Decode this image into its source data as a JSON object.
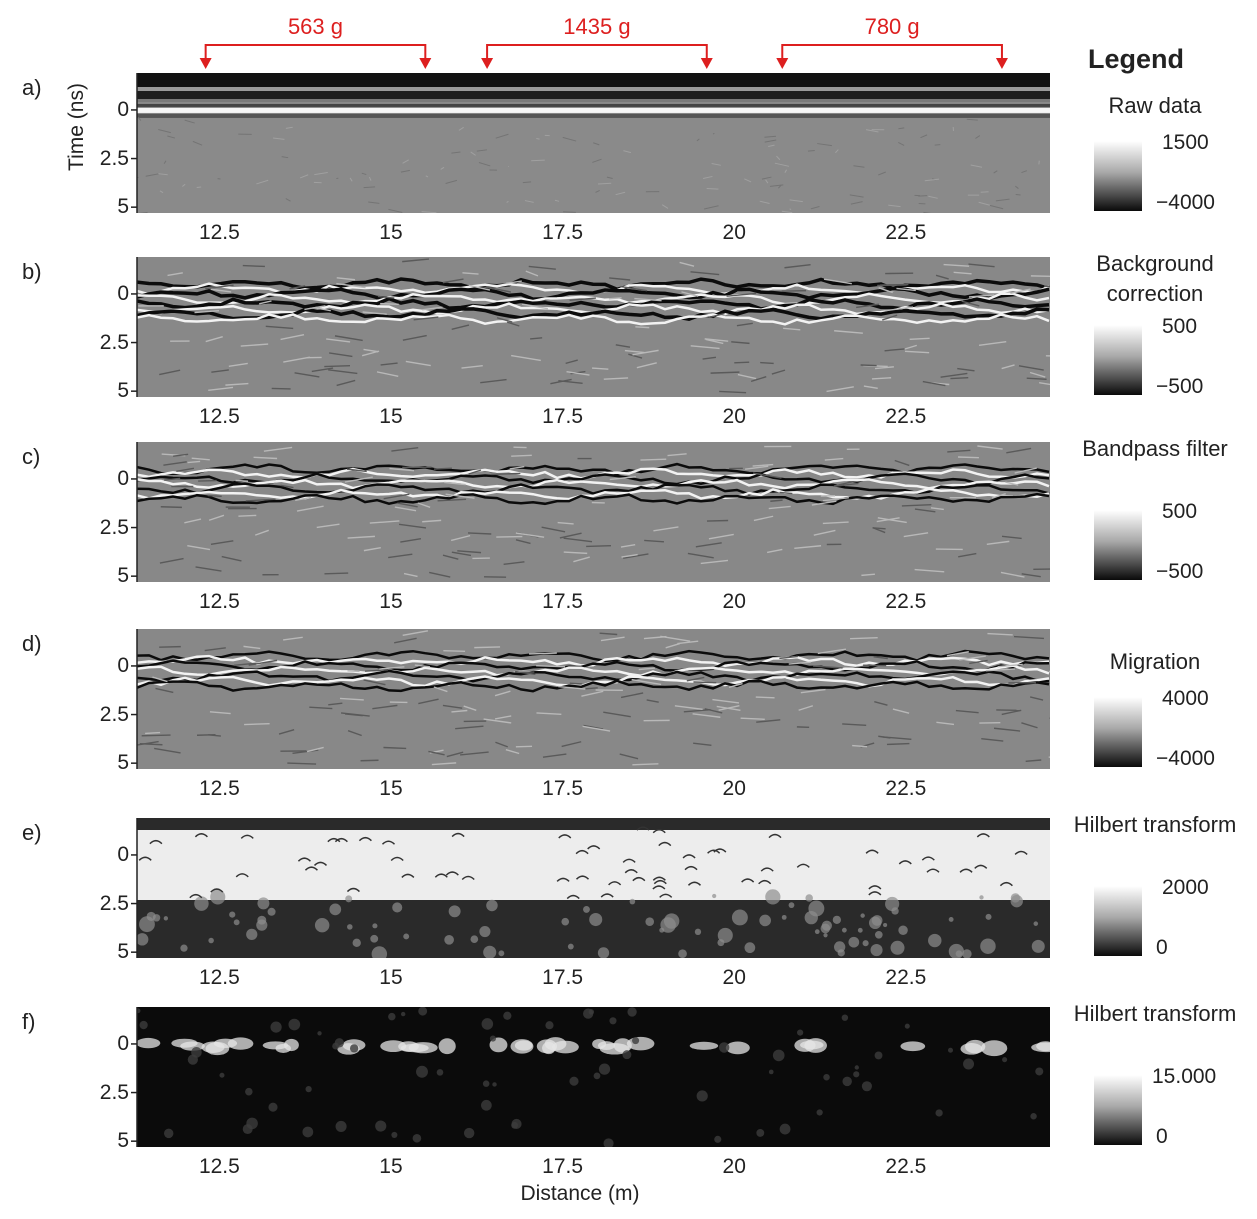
{
  "chart_data": {
    "type": "heatmap",
    "x_unit_label": "Distance (m)",
    "y_unit_label": "Time (ns)",
    "xlim": [
      11.3,
      24.6
    ],
    "ylim": [
      -1.9,
      5.3
    ],
    "x_ticks": [
      {
        "value": 12.5,
        "label": "12.5"
      },
      {
        "value": 15,
        "label": "15"
      },
      {
        "value": 17.5,
        "label": "17.5"
      },
      {
        "value": 20,
        "label": "20"
      },
      {
        "value": 22.5,
        "label": "22.5"
      }
    ],
    "y_ticks": [
      {
        "value": 0,
        "label": "0"
      },
      {
        "value": 2.5,
        "label": "2.5"
      },
      {
        "value": 5,
        "label": "5"
      }
    ],
    "annotations": [
      {
        "label": "563 g",
        "x_start": 12.3,
        "x_end": 15.5
      },
      {
        "label": "1435 g",
        "x_start": 16.4,
        "x_end": 19.6
      },
      {
        "label": "780 g",
        "x_start": 20.7,
        "x_end": 23.9
      }
    ],
    "panels": [
      {
        "id": "a)",
        "legend_title": "Raw data",
        "colorbar_max": "1500",
        "colorbar_min": "−4000",
        "style": "raw"
      },
      {
        "id": "b)",
        "legend_title": "Background correction",
        "colorbar_max": "500",
        "colorbar_min": "−500",
        "style": "bg"
      },
      {
        "id": "c)",
        "legend_title": "Bandpass filter",
        "colorbar_max": "500",
        "colorbar_min": "−500",
        "style": "bp"
      },
      {
        "id": "d)",
        "legend_title": "Migration",
        "colorbar_max": "4000",
        "colorbar_min": "−4000",
        "style": "mig"
      },
      {
        "id": "e)",
        "legend_title": "Hilbert transform",
        "colorbar_max": "2000",
        "colorbar_min": "0",
        "style": "hilbert"
      },
      {
        "id": "f)",
        "legend_title": "Hilbert transform",
        "colorbar_max": "15.000",
        "colorbar_min": "0",
        "style": "hilbert2"
      }
    ],
    "legend_heading": "Legend",
    "show_y_axis_label_on_panel": "a)",
    "show_x_axis_label_on_panel": "f)"
  },
  "colors": {
    "annotation": "#dd1f1f",
    "axis": "#222222"
  }
}
